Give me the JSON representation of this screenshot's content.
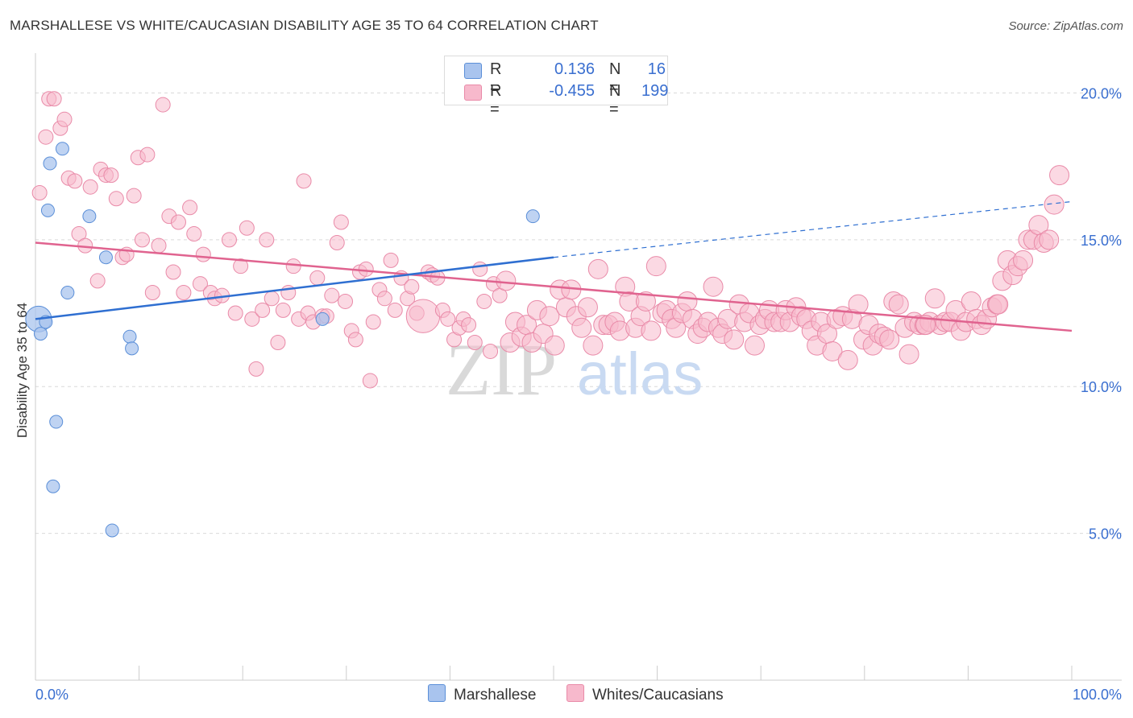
{
  "title": "MARSHALLESE VS WHITE/CAUCASIAN DISABILITY AGE 35 TO 64 CORRELATION CHART",
  "source": "Source: ZipAtlas.com",
  "watermark": {
    "zip": "ZIP",
    "atlas": "atlas"
  },
  "colors": {
    "marshallese_fill": "#a9c4ee",
    "marshallese_stroke": "#5b8fd8",
    "marshallese_line": "#2f6fd1",
    "white_fill": "#f7b9cc",
    "white_stroke": "#e98aa8",
    "white_line": "#e0638f",
    "tick_label": "#3a6fd0",
    "grid": "#d9d9d9"
  },
  "legend": {
    "rows": [
      {
        "r_label": "R =",
        "r_value": "0.136",
        "n_label": "N =",
        "n_value": "16",
        "series": "marshallese"
      },
      {
        "r_label": "R =",
        "r_value": "-0.455",
        "n_label": "N =",
        "n_value": "199",
        "series": "white"
      }
    ]
  },
  "chart_data": {
    "type": "scatter",
    "xlabel": "",
    "ylabel": "Disability Age 35 to 64",
    "xlim": [
      0,
      100
    ],
    "ylim": [
      0,
      21
    ],
    "x_tick_labels": [
      "0.0%",
      "100.0%"
    ],
    "y_ticks": [
      5,
      10,
      15,
      20
    ],
    "y_tick_labels": [
      "5.0%",
      "10.0%",
      "15.0%",
      "20.0%"
    ],
    "grid": true,
    "legend_position": "top-center",
    "series": [
      {
        "name": "Marshallese",
        "legend_label": "Marshallese",
        "points": [
          [
            0.3,
            12.3,
            2.0
          ],
          [
            0.5,
            11.8,
            1
          ],
          [
            1.0,
            12.2,
            1
          ],
          [
            1.2,
            16.0,
            1
          ],
          [
            1.4,
            17.6,
            1
          ],
          [
            1.7,
            6.6,
            1
          ],
          [
            2.0,
            8.8,
            1
          ],
          [
            2.6,
            18.1,
            1
          ],
          [
            3.1,
            13.2,
            1
          ],
          [
            5.2,
            15.8,
            1
          ],
          [
            6.8,
            14.4,
            1
          ],
          [
            7.4,
            5.1,
            1
          ],
          [
            9.1,
            11.7,
            1
          ],
          [
            9.3,
            11.3,
            1
          ],
          [
            27.7,
            12.3,
            1
          ],
          [
            48.0,
            15.8,
            1
          ]
        ],
        "trend": {
          "x0": 0,
          "y0": 12.3,
          "x1": 50,
          "y1": 14.4,
          "dash_x1": 100,
          "dash_y1": 16.3
        }
      },
      {
        "name": "Whites/Caucasians",
        "legend_label": "Whites/Caucasians",
        "points": [
          [
            0.4,
            16.6,
            1
          ],
          [
            1.0,
            18.5,
            1
          ],
          [
            1.3,
            19.8,
            1
          ],
          [
            1.8,
            19.8,
            1
          ],
          [
            2.4,
            18.8,
            1
          ],
          [
            2.8,
            19.1,
            1
          ],
          [
            3.2,
            17.1,
            1
          ],
          [
            3.8,
            17.0,
            1
          ],
          [
            4.2,
            15.2,
            1
          ],
          [
            4.8,
            14.8,
            1
          ],
          [
            5.3,
            16.8,
            1
          ],
          [
            6.0,
            13.6,
            1
          ],
          [
            6.3,
            17.4,
            1
          ],
          [
            6.8,
            17.2,
            1
          ],
          [
            7.3,
            17.2,
            1
          ],
          [
            7.8,
            16.4,
            1
          ],
          [
            8.4,
            14.4,
            1
          ],
          [
            8.8,
            14.5,
            1
          ],
          [
            9.5,
            16.5,
            1
          ],
          [
            9.9,
            17.8,
            1
          ],
          [
            10.3,
            15.0,
            1
          ],
          [
            10.8,
            17.9,
            1
          ],
          [
            11.3,
            13.2,
            1
          ],
          [
            11.9,
            14.8,
            1
          ],
          [
            12.3,
            19.6,
            1
          ],
          [
            12.9,
            15.8,
            1
          ],
          [
            13.3,
            13.9,
            1
          ],
          [
            13.8,
            15.6,
            1
          ],
          [
            14.3,
            13.2,
            1
          ],
          [
            14.9,
            16.1,
            1
          ],
          [
            15.3,
            15.2,
            1
          ],
          [
            15.9,
            13.5,
            1
          ],
          [
            16.2,
            14.5,
            1
          ],
          [
            16.9,
            13.2,
            1
          ],
          [
            17.3,
            13.0,
            1
          ],
          [
            18.0,
            13.1,
            1
          ],
          [
            18.7,
            15.0,
            1
          ],
          [
            19.3,
            12.5,
            1
          ],
          [
            19.8,
            14.1,
            1
          ],
          [
            20.4,
            15.4,
            1
          ],
          [
            20.9,
            12.3,
            1
          ],
          [
            21.3,
            10.6,
            1
          ],
          [
            21.9,
            12.6,
            1
          ],
          [
            22.3,
            15.0,
            1
          ],
          [
            22.8,
            13.0,
            1
          ],
          [
            23.4,
            11.5,
            1
          ],
          [
            23.9,
            12.6,
            1
          ],
          [
            24.4,
            13.2,
            1
          ],
          [
            24.9,
            14.1,
            1
          ],
          [
            25.4,
            12.3,
            1
          ],
          [
            25.9,
            17.0,
            1
          ],
          [
            26.3,
            12.5,
            1
          ],
          [
            26.8,
            12.2,
            1
          ],
          [
            27.2,
            13.7,
            1
          ],
          [
            27.7,
            12.4,
            1
          ],
          [
            28.1,
            12.4,
            1
          ],
          [
            28.6,
            13.1,
            1
          ],
          [
            29.1,
            14.9,
            1
          ],
          [
            29.5,
            15.6,
            1
          ],
          [
            29.9,
            12.9,
            1
          ],
          [
            30.5,
            11.9,
            1
          ],
          [
            30.9,
            11.6,
            1
          ],
          [
            31.3,
            13.9,
            1
          ],
          [
            31.9,
            14.0,
            1
          ],
          [
            32.3,
            10.2,
            1
          ],
          [
            32.6,
            12.2,
            1
          ],
          [
            33.2,
            13.3,
            1
          ],
          [
            33.7,
            13.0,
            1
          ],
          [
            34.3,
            14.3,
            1
          ],
          [
            34.7,
            12.6,
            1
          ],
          [
            35.3,
            13.7,
            1
          ],
          [
            35.9,
            13.0,
            1
          ],
          [
            36.3,
            13.4,
            1
          ],
          [
            36.8,
            12.5,
            1
          ],
          [
            37.4,
            12.4,
            2.3
          ],
          [
            37.9,
            13.9,
            1
          ],
          [
            38.3,
            13.8,
            1
          ],
          [
            38.8,
            13.7,
            1
          ],
          [
            39.3,
            12.6,
            1
          ],
          [
            39.8,
            12.3,
            1
          ],
          [
            40.4,
            11.6,
            1
          ],
          [
            40.9,
            12.0,
            1
          ],
          [
            41.3,
            12.3,
            1
          ],
          [
            41.8,
            12.1,
            1
          ],
          [
            42.4,
            11.5,
            1
          ],
          [
            42.9,
            14.0,
            1
          ],
          [
            43.3,
            12.9,
            1
          ],
          [
            43.9,
            11.2,
            1
          ],
          [
            44.2,
            13.5,
            1
          ],
          [
            44.8,
            13.1,
            1
          ],
          [
            45.4,
            13.6,
            1
          ],
          [
            45.8,
            11.5,
            1
          ],
          [
            46.3,
            12.2,
            1
          ],
          [
            46.9,
            11.7,
            1
          ],
          [
            47.4,
            12.1,
            1
          ],
          [
            47.9,
            11.5,
            1
          ],
          [
            48.4,
            12.6,
            1
          ],
          [
            49.0,
            11.8,
            1
          ],
          [
            49.6,
            12.4,
            1
          ],
          [
            50.1,
            11.4,
            1
          ],
          [
            50.6,
            13.3,
            1
          ],
          [
            51.2,
            12.7,
            1
          ],
          [
            51.7,
            13.3,
            1
          ],
          [
            52.2,
            12.4,
            1
          ],
          [
            52.7,
            12.0,
            1
          ],
          [
            53.3,
            12.7,
            1
          ],
          [
            53.8,
            11.4,
            1
          ],
          [
            54.3,
            14.0,
            1
          ],
          [
            54.8,
            12.1,
            1
          ],
          [
            55.3,
            12.1,
            1
          ],
          [
            55.9,
            12.2,
            1
          ],
          [
            56.4,
            11.9,
            1
          ],
          [
            56.9,
            13.4,
            1
          ],
          [
            57.3,
            12.9,
            1
          ],
          [
            57.9,
            12.0,
            1
          ],
          [
            58.4,
            12.4,
            1
          ],
          [
            58.9,
            12.9,
            1
          ],
          [
            59.4,
            11.9,
            1
          ],
          [
            59.9,
            14.1,
            1
          ],
          [
            60.5,
            12.5,
            1
          ],
          [
            60.9,
            12.6,
            1
          ],
          [
            61.4,
            12.3,
            1
          ],
          [
            61.8,
            12.0,
            1
          ],
          [
            62.4,
            12.5,
            1
          ],
          [
            62.9,
            12.9,
            1
          ],
          [
            63.4,
            12.3,
            1
          ],
          [
            63.9,
            11.8,
            1
          ],
          [
            64.4,
            12.0,
            1
          ],
          [
            64.9,
            12.2,
            1
          ],
          [
            65.4,
            13.4,
            1
          ],
          [
            65.9,
            12.0,
            1
          ],
          [
            66.3,
            11.8,
            1
          ],
          [
            66.8,
            12.3,
            1
          ],
          [
            67.4,
            11.6,
            1
          ],
          [
            67.9,
            12.8,
            1
          ],
          [
            68.4,
            12.2,
            1
          ],
          [
            68.9,
            12.5,
            1
          ],
          [
            69.4,
            11.4,
            1
          ],
          [
            69.9,
            12.1,
            1
          ],
          [
            70.4,
            12.3,
            1
          ],
          [
            70.8,
            12.6,
            1
          ],
          [
            71.3,
            12.2,
            1
          ],
          [
            71.9,
            12.2,
            1
          ],
          [
            72.4,
            12.6,
            1
          ],
          [
            72.8,
            12.2,
            1
          ],
          [
            73.4,
            12.7,
            1
          ],
          [
            73.9,
            12.4,
            1
          ],
          [
            74.4,
            12.3,
            1
          ],
          [
            74.9,
            11.9,
            1
          ],
          [
            75.4,
            11.4,
            1
          ],
          [
            75.8,
            12.2,
            1
          ],
          [
            76.4,
            11.8,
            1
          ],
          [
            76.9,
            11.2,
            1
          ],
          [
            77.3,
            12.3,
            1
          ],
          [
            77.9,
            12.4,
            1
          ],
          [
            78.4,
            10.9,
            1
          ],
          [
            78.8,
            12.3,
            1
          ],
          [
            79.4,
            12.8,
            1
          ],
          [
            79.9,
            11.6,
            1
          ],
          [
            80.4,
            12.1,
            1
          ],
          [
            80.8,
            11.4,
            1
          ],
          [
            81.4,
            11.8,
            1
          ],
          [
            81.9,
            11.7,
            1
          ],
          [
            82.4,
            11.6,
            1
          ],
          [
            82.8,
            12.9,
            1
          ],
          [
            83.3,
            12.8,
            1
          ],
          [
            83.9,
            12.0,
            1
          ],
          [
            84.3,
            11.1,
            1
          ],
          [
            84.8,
            12.2,
            1
          ],
          [
            85.3,
            12.1,
            1
          ],
          [
            85.8,
            12.1,
            1
          ],
          [
            86.3,
            12.2,
            1
          ],
          [
            86.8,
            13.0,
            1
          ],
          [
            87.3,
            12.1,
            1
          ],
          [
            87.8,
            12.2,
            1
          ],
          [
            88.3,
            12.2,
            1
          ],
          [
            88.8,
            12.6,
            1
          ],
          [
            89.3,
            11.9,
            1
          ],
          [
            89.8,
            12.2,
            1
          ],
          [
            90.3,
            12.9,
            1
          ],
          [
            90.8,
            12.3,
            1
          ],
          [
            91.3,
            12.1,
            1
          ],
          [
            91.8,
            12.3,
            1
          ],
          [
            92.3,
            12.7,
            1
          ],
          [
            92.8,
            12.8,
            1
          ],
          [
            93.3,
            13.6,
            1
          ],
          [
            93.8,
            14.3,
            1
          ],
          [
            94.3,
            13.8,
            1
          ],
          [
            94.8,
            14.1,
            1
          ],
          [
            95.3,
            14.3,
            1
          ],
          [
            95.8,
            15.0,
            1
          ],
          [
            96.3,
            15.0,
            1
          ],
          [
            96.8,
            15.5,
            1
          ],
          [
            97.3,
            14.9,
            1
          ],
          [
            97.8,
            15.0,
            1
          ],
          [
            98.3,
            16.2,
            1
          ],
          [
            98.8,
            17.2,
            1
          ],
          [
            92.9,
            12.8,
            1
          ],
          [
            85.9,
            12.1,
            1
          ]
        ],
        "trend": {
          "x0": 0,
          "y0": 14.9,
          "x1": 100,
          "y1": 11.9
        }
      }
    ]
  }
}
